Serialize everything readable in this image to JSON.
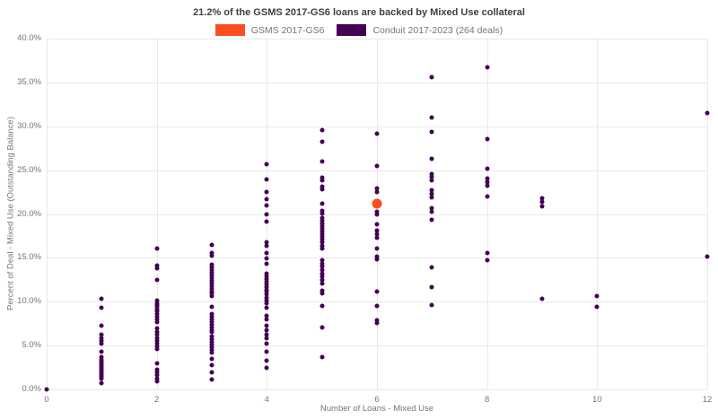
{
  "title": "21.2% of the GSMS 2017-GS6 loans are backed by Mixed Use collateral",
  "legend": [
    {
      "label": "GSMS 2017-GS6",
      "color": "#f94e1e"
    },
    {
      "label": "Conduit 2017-2023 (264 deals)",
      "color": "#440154"
    }
  ],
  "colors": {
    "grid": "#e9e9e9",
    "axis_line": "#d6d6d6",
    "tick_text": "#757575",
    "title_text": "#404040"
  },
  "chart_data": {
    "type": "scatter",
    "title": "21.2% of the GSMS 2017-GS6 loans are backed by Mixed Use collateral",
    "xlabel": "Number of Loans - Mixed Use",
    "ylabel": "Percent of Deal - Mixed Use (Outstanding Balance)",
    "xlim": [
      0,
      12
    ],
    "ylim": [
      0,
      40
    ],
    "grid": true,
    "legend_position": "top",
    "xticks": [
      {
        "value": 0,
        "label": "0"
      },
      {
        "value": 2,
        "label": "2"
      },
      {
        "value": 4,
        "label": "4"
      },
      {
        "value": 6,
        "label": "6"
      },
      {
        "value": 8,
        "label": "8"
      },
      {
        "value": 10,
        "label": "10"
      },
      {
        "value": 12,
        "label": "12"
      }
    ],
    "yticks": [
      {
        "value": 0,
        "label": "0.0%"
      },
      {
        "value": 5,
        "label": "5.0%"
      },
      {
        "value": 10,
        "label": "10.0%"
      },
      {
        "value": 15,
        "label": "15.0%"
      },
      {
        "value": 20,
        "label": "20.0%"
      },
      {
        "value": 25,
        "label": "25.0%"
      },
      {
        "value": 30,
        "label": "30.0%"
      },
      {
        "value": 35,
        "label": "35.0%"
      },
      {
        "value": 40,
        "label": "40.0%"
      }
    ],
    "series": [
      {
        "name": "GSMS 2017-GS6",
        "color": "#f94e1e",
        "marker_size": 11,
        "points": [
          [
            6,
            21.2
          ]
        ]
      },
      {
        "name": "Conduit 2017-2023 (264 deals)",
        "color": "#440154",
        "marker_size": 5,
        "points": [
          [
            0,
            0.0
          ],
          [
            1,
            10.3
          ],
          [
            1,
            9.3
          ],
          [
            1,
            7.3
          ],
          [
            1,
            6.2
          ],
          [
            1,
            5.8
          ],
          [
            1,
            5.5
          ],
          [
            1,
            5.2
          ],
          [
            1,
            4.3
          ],
          [
            1,
            3.7
          ],
          [
            1,
            3.4
          ],
          [
            1,
            3.2
          ],
          [
            1,
            3.0
          ],
          [
            1,
            2.8
          ],
          [
            1,
            2.6
          ],
          [
            1,
            2.4
          ],
          [
            1,
            2.2
          ],
          [
            1,
            2.0
          ],
          [
            1,
            1.8
          ],
          [
            1,
            1.6
          ],
          [
            1,
            1.4
          ],
          [
            1,
            1.2
          ],
          [
            1,
            0.7
          ],
          [
            2,
            16.1
          ],
          [
            2,
            14.1
          ],
          [
            2,
            13.8
          ],
          [
            2,
            12.5
          ],
          [
            2,
            10.1
          ],
          [
            2,
            9.8
          ],
          [
            2,
            9.6
          ],
          [
            2,
            9.4
          ],
          [
            2,
            9.1
          ],
          [
            2,
            8.9
          ],
          [
            2,
            8.6
          ],
          [
            2,
            8.3
          ],
          [
            2,
            8.0
          ],
          [
            2,
            7.7
          ],
          [
            2,
            7.0
          ],
          [
            2,
            6.5
          ],
          [
            2,
            6.2
          ],
          [
            2,
            5.8
          ],
          [
            2,
            5.5
          ],
          [
            2,
            5.2
          ],
          [
            2,
            4.9
          ],
          [
            2,
            4.6
          ],
          [
            2,
            3.0
          ],
          [
            2,
            2.2
          ],
          [
            2,
            1.9
          ],
          [
            2,
            1.6
          ],
          [
            2,
            1.2
          ],
          [
            2,
            0.9
          ],
          [
            3,
            16.5
          ],
          [
            3,
            15.5
          ],
          [
            3,
            15.2
          ],
          [
            3,
            14.2
          ],
          [
            3,
            13.9
          ],
          [
            3,
            13.6
          ],
          [
            3,
            13.3
          ],
          [
            3,
            13.0
          ],
          [
            3,
            12.7
          ],
          [
            3,
            12.4
          ],
          [
            3,
            12.1
          ],
          [
            3,
            11.8
          ],
          [
            3,
            11.5
          ],
          [
            3,
            11.2
          ],
          [
            3,
            10.9
          ],
          [
            3,
            10.6
          ],
          [
            3,
            9.4
          ],
          [
            3,
            8.6
          ],
          [
            3,
            8.3
          ],
          [
            3,
            8.0
          ],
          [
            3,
            7.7
          ],
          [
            3,
            7.4
          ],
          [
            3,
            7.1
          ],
          [
            3,
            6.8
          ],
          [
            3,
            6.5
          ],
          [
            3,
            6.0
          ],
          [
            3,
            5.7
          ],
          [
            3,
            5.4
          ],
          [
            3,
            5.1
          ],
          [
            3,
            4.8
          ],
          [
            3,
            4.5
          ],
          [
            3,
            4.2
          ],
          [
            3,
            3.5
          ],
          [
            3,
            2.8
          ],
          [
            3,
            1.9
          ],
          [
            3,
            1.1
          ],
          [
            4,
            25.7
          ],
          [
            4,
            23.9
          ],
          [
            4,
            22.5
          ],
          [
            4,
            21.7
          ],
          [
            4,
            21.0
          ],
          [
            4,
            20.0
          ],
          [
            4,
            19.1
          ],
          [
            4,
            16.8
          ],
          [
            4,
            16.4
          ],
          [
            4,
            15.6
          ],
          [
            4,
            14.9
          ],
          [
            4,
            14.3
          ],
          [
            4,
            13.2
          ],
          [
            4,
            12.9
          ],
          [
            4,
            12.6
          ],
          [
            4,
            12.3
          ],
          [
            4,
            12.0
          ],
          [
            4,
            11.7
          ],
          [
            4,
            11.4
          ],
          [
            4,
            11.1
          ],
          [
            4,
            10.8
          ],
          [
            4,
            10.4
          ],
          [
            4,
            10.1
          ],
          [
            4,
            9.8
          ],
          [
            4,
            9.3
          ],
          [
            4,
            8.4
          ],
          [
            4,
            8.0
          ],
          [
            4,
            7.3
          ],
          [
            4,
            6.8
          ],
          [
            4,
            6.2
          ],
          [
            4,
            5.8
          ],
          [
            4,
            5.2
          ],
          [
            4,
            4.3
          ],
          [
            4,
            3.3
          ],
          [
            4,
            2.5
          ],
          [
            5,
            29.6
          ],
          [
            5,
            28.2
          ],
          [
            5,
            26.0
          ],
          [
            5,
            24.1
          ],
          [
            5,
            23.8
          ],
          [
            5,
            23.1
          ],
          [
            5,
            22.8
          ],
          [
            5,
            21.2
          ],
          [
            5,
            20.4
          ],
          [
            5,
            20.1
          ],
          [
            5,
            19.5
          ],
          [
            5,
            19.2
          ],
          [
            5,
            18.9
          ],
          [
            5,
            18.6
          ],
          [
            5,
            18.3
          ],
          [
            5,
            18.0
          ],
          [
            5,
            17.7
          ],
          [
            5,
            17.4
          ],
          [
            5,
            17.1
          ],
          [
            5,
            16.8
          ],
          [
            5,
            16.4
          ],
          [
            5,
            16.1
          ],
          [
            5,
            14.7
          ],
          [
            5,
            14.3
          ],
          [
            5,
            14.0
          ],
          [
            5,
            13.6
          ],
          [
            5,
            13.2
          ],
          [
            5,
            12.9
          ],
          [
            5,
            12.5
          ],
          [
            5,
            12.1
          ],
          [
            5,
            11.3
          ],
          [
            5,
            10.9
          ],
          [
            5,
            9.5
          ],
          [
            5,
            7.1
          ],
          [
            5,
            3.7
          ],
          [
            6,
            29.2
          ],
          [
            6,
            25.5
          ],
          [
            6,
            22.9
          ],
          [
            6,
            22.5
          ],
          [
            6,
            20.9
          ],
          [
            6,
            20.3
          ],
          [
            6,
            20.0
          ],
          [
            6,
            18.8
          ],
          [
            6,
            18.1
          ],
          [
            6,
            17.7
          ],
          [
            6,
            17.3
          ],
          [
            6,
            16.1
          ],
          [
            6,
            15.1
          ],
          [
            6,
            14.8
          ],
          [
            6,
            11.2
          ],
          [
            6,
            9.5
          ],
          [
            6,
            7.9
          ],
          [
            6,
            7.6
          ],
          [
            7,
            35.6
          ],
          [
            7,
            31.0
          ],
          [
            7,
            29.4
          ],
          [
            7,
            26.3
          ],
          [
            7,
            24.6
          ],
          [
            7,
            24.2
          ],
          [
            7,
            23.8
          ],
          [
            7,
            22.7
          ],
          [
            7,
            22.3
          ],
          [
            7,
            21.9
          ],
          [
            7,
            20.7
          ],
          [
            7,
            20.3
          ],
          [
            7,
            19.3
          ],
          [
            7,
            13.9
          ],
          [
            7,
            11.7
          ],
          [
            7,
            9.6
          ],
          [
            8,
            36.7
          ],
          [
            8,
            28.5
          ],
          [
            8,
            25.2
          ],
          [
            8,
            24.0
          ],
          [
            8,
            23.6
          ],
          [
            8,
            23.2
          ],
          [
            8,
            22.0
          ],
          [
            8,
            15.5
          ],
          [
            8,
            14.7
          ],
          [
            9,
            21.8
          ],
          [
            9,
            21.4
          ],
          [
            9,
            20.9
          ],
          [
            9,
            10.3
          ],
          [
            10,
            10.6
          ],
          [
            10,
            9.4
          ],
          [
            12,
            31.5
          ],
          [
            12,
            15.1
          ]
        ]
      }
    ]
  }
}
